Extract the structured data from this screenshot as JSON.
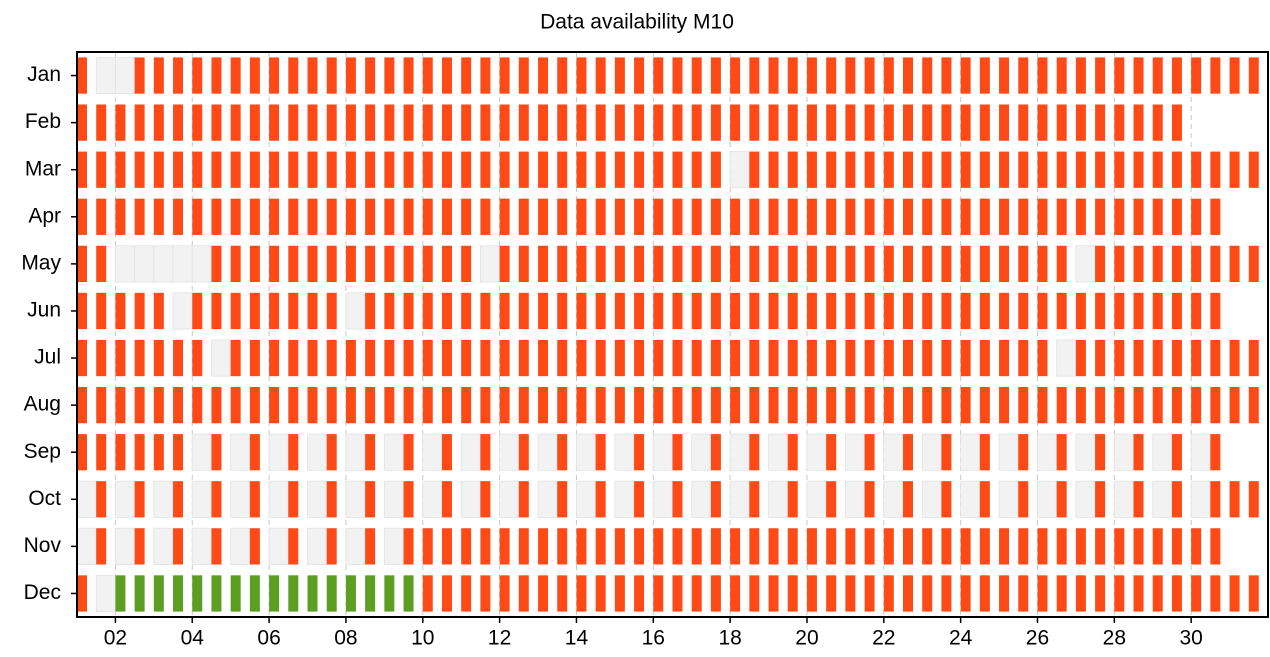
{
  "chart_data": {
    "type": "availability",
    "title": "Data availability M10",
    "categories": [
      "Jan",
      "Feb",
      "Mar",
      "Apr",
      "May",
      "Jun",
      "Jul",
      "Aug",
      "Sep",
      "Oct",
      "Nov",
      "Dec"
    ],
    "values": [
      [
        1,
        0,
        0,
        1,
        1,
        1,
        1,
        1,
        1,
        1,
        1,
        1,
        1,
        1,
        1,
        1,
        1,
        1,
        1,
        1,
        1,
        1,
        1,
        1,
        1,
        1,
        1,
        1,
        1,
        1,
        1,
        1,
        1,
        1,
        1,
        1,
        1,
        1,
        1,
        1,
        1,
        1,
        1,
        1,
        1,
        1,
        1,
        1,
        1,
        1,
        1,
        1,
        1,
        1,
        1,
        1,
        1,
        1,
        1,
        1,
        1,
        1
      ],
      [
        1,
        1,
        1,
        1,
        1,
        1,
        1,
        1,
        1,
        1,
        1,
        1,
        1,
        1,
        1,
        1,
        1,
        1,
        1,
        1,
        1,
        1,
        1,
        1,
        1,
        1,
        1,
        1,
        1,
        1,
        1,
        1,
        1,
        1,
        1,
        1,
        1,
        1,
        1,
        1,
        1,
        1,
        1,
        1,
        1,
        1,
        1,
        1,
        1,
        1,
        1,
        1,
        1,
        1,
        1,
        1,
        1,
        1
      ],
      [
        1,
        1,
        1,
        1,
        1,
        1,
        1,
        1,
        1,
        1,
        1,
        1,
        1,
        1,
        1,
        1,
        1,
        1,
        1,
        1,
        1,
        1,
        1,
        1,
        1,
        1,
        1,
        1,
        1,
        1,
        1,
        1,
        1,
        1,
        0,
        1,
        1,
        1,
        1,
        1,
        1,
        1,
        1,
        1,
        1,
        1,
        1,
        1,
        1,
        1,
        1,
        1,
        1,
        1,
        1,
        1,
        1,
        1,
        1,
        1,
        1,
        1
      ],
      [
        1,
        1,
        1,
        1,
        1,
        1,
        1,
        1,
        1,
        1,
        1,
        1,
        1,
        1,
        1,
        1,
        1,
        1,
        1,
        1,
        1,
        1,
        1,
        1,
        1,
        1,
        1,
        1,
        1,
        1,
        1,
        1,
        1,
        1,
        1,
        1,
        1,
        1,
        1,
        1,
        1,
        1,
        1,
        1,
        1,
        1,
        1,
        1,
        1,
        1,
        1,
        1,
        1,
        1,
        1,
        1,
        1,
        1,
        1,
        1
      ],
      [
        1,
        1,
        0,
        0,
        0,
        0,
        0,
        1,
        1,
        1,
        1,
        1,
        1,
        1,
        1,
        1,
        1,
        1,
        1,
        1,
        1,
        0,
        1,
        1,
        1,
        1,
        1,
        1,
        1,
        1,
        1,
        1,
        1,
        1,
        1,
        1,
        1,
        1,
        1,
        1,
        1,
        1,
        1,
        1,
        1,
        1,
        1,
        1,
        1,
        1,
        1,
        1,
        0,
        1,
        1,
        1,
        1,
        1,
        1,
        1,
        1,
        1
      ],
      [
        1,
        1,
        1,
        1,
        1,
        0,
        1,
        1,
        1,
        1,
        1,
        1,
        1,
        1,
        0,
        1,
        1,
        1,
        1,
        1,
        1,
        1,
        1,
        1,
        1,
        1,
        1,
        1,
        1,
        1,
        1,
        1,
        1,
        1,
        1,
        1,
        1,
        1,
        1,
        1,
        1,
        1,
        1,
        1,
        1,
        1,
        1,
        1,
        1,
        1,
        1,
        1,
        1,
        1,
        1,
        1,
        1,
        1,
        1,
        1
      ],
      [
        1,
        1,
        1,
        1,
        1,
        1,
        1,
        0,
        1,
        1,
        1,
        1,
        1,
        1,
        1,
        1,
        1,
        1,
        1,
        1,
        1,
        1,
        1,
        1,
        1,
        1,
        1,
        1,
        1,
        1,
        1,
        1,
        1,
        1,
        1,
        1,
        1,
        1,
        1,
        1,
        1,
        1,
        1,
        1,
        1,
        1,
        1,
        1,
        1,
        1,
        1,
        0,
        1,
        1,
        1,
        1,
        1,
        1,
        1,
        1,
        1,
        1
      ],
      [
        1,
        1,
        1,
        1,
        1,
        1,
        1,
        1,
        1,
        1,
        1,
        1,
        1,
        1,
        1,
        1,
        1,
        1,
        1,
        1,
        1,
        1,
        1,
        1,
        1,
        1,
        1,
        1,
        1,
        1,
        1,
        1,
        1,
        1,
        1,
        1,
        1,
        1,
        1,
        1,
        1,
        1,
        1,
        1,
        1,
        1,
        1,
        1,
        1,
        1,
        1,
        1,
        1,
        1,
        1,
        1,
        1,
        1,
        1,
        1,
        1,
        1
      ],
      [
        1,
        1,
        1,
        1,
        1,
        1,
        0,
        1,
        0,
        1,
        0,
        1,
        0,
        1,
        0,
        1,
        0,
        1,
        0,
        1,
        0,
        1,
        0,
        1,
        0,
        1,
        0,
        1,
        0,
        1,
        0,
        1,
        0,
        1,
        0,
        1,
        0,
        1,
        0,
        1,
        0,
        1,
        0,
        1,
        0,
        1,
        0,
        1,
        0,
        1,
        0,
        1,
        0,
        1,
        0,
        1,
        0,
        1,
        0,
        1
      ],
      [
        0,
        1,
        0,
        1,
        0,
        1,
        0,
        1,
        0,
        1,
        0,
        1,
        0,
        1,
        0,
        1,
        0,
        1,
        0,
        1,
        0,
        1,
        0,
        1,
        0,
        1,
        0,
        1,
        0,
        1,
        0,
        1,
        0,
        1,
        0,
        1,
        0,
        1,
        0,
        1,
        0,
        1,
        0,
        1,
        0,
        1,
        0,
        1,
        0,
        1,
        0,
        1,
        0,
        1,
        0,
        1,
        0,
        1,
        0,
        1,
        1,
        1
      ],
      [
        0,
        1,
        0,
        1,
        0,
        1,
        0,
        1,
        0,
        1,
        0,
        1,
        0,
        1,
        0,
        1,
        0,
        1,
        1,
        1,
        1,
        1,
        1,
        1,
        1,
        1,
        1,
        1,
        1,
        1,
        1,
        1,
        1,
        1,
        1,
        1,
        1,
        1,
        1,
        1,
        1,
        1,
        1,
        1,
        1,
        1,
        1,
        1,
        1,
        1,
        1,
        1,
        1,
        1,
        1,
        1,
        1,
        1,
        1,
        1
      ],
      [
        1,
        0,
        2,
        2,
        2,
        2,
        2,
        2,
        2,
        2,
        2,
        2,
        2,
        2,
        2,
        2,
        2,
        2,
        1,
        1,
        1,
        1,
        1,
        1,
        1,
        1,
        1,
        1,
        1,
        1,
        1,
        1,
        1,
        1,
        1,
        1,
        1,
        1,
        1,
        1,
        1,
        1,
        1,
        1,
        1,
        1,
        1,
        1,
        1,
        1,
        1,
        1,
        1,
        1,
        1,
        1,
        1,
        1,
        1,
        1,
        1,
        1
      ]
    ],
    "colors": {
      "0": "#f2f2f2",
      "1": "#fe4a16",
      "2": "#5b9e21"
    },
    "xlim": [
      1,
      32
    ],
    "xticks": [
      {
        "value": 2,
        "label": "02"
      },
      {
        "value": 4,
        "label": "04"
      },
      {
        "value": 6,
        "label": "06"
      },
      {
        "value": 8,
        "label": "08"
      },
      {
        "value": 10,
        "label": "10"
      },
      {
        "value": 12,
        "label": "12"
      },
      {
        "value": 14,
        "label": "14"
      },
      {
        "value": 16,
        "label": "16"
      },
      {
        "value": 18,
        "label": "18"
      },
      {
        "value": 20,
        "label": "20"
      },
      {
        "value": 22,
        "label": "22"
      },
      {
        "value": 24,
        "label": "24"
      },
      {
        "value": 26,
        "label": "26"
      },
      {
        "value": 28,
        "label": "28"
      },
      {
        "value": 30,
        "label": "30"
      }
    ],
    "grid": true
  }
}
